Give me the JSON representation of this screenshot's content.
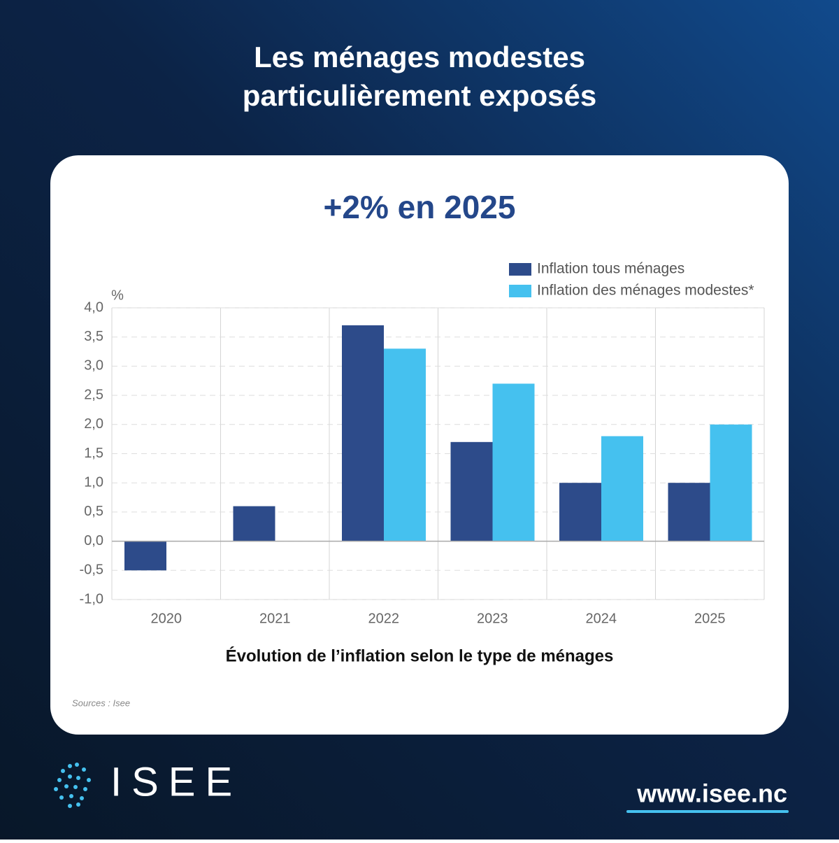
{
  "header": {
    "title_lines": [
      "Les ménages modestes",
      "particulièrement exposés"
    ]
  },
  "chart_data": {
    "type": "bar",
    "title": "+2% en 2025",
    "y_label": "%",
    "categories": [
      "2020",
      "2021",
      "2022",
      "2023",
      "2024",
      "2025"
    ],
    "series": [
      {
        "name": "Inflation tous ménages",
        "color": "#2d4b8a",
        "values": [
          -0.5,
          0.6,
          3.7,
          1.7,
          1.0,
          1.0
        ]
      },
      {
        "name": "Inflation des ménages modestes*",
        "color": "#45c1ef",
        "values": [
          null,
          null,
          3.3,
          2.7,
          1.8,
          2.0
        ]
      }
    ],
    "ylim": [
      -1,
      4
    ],
    "yticks": [
      {
        "value": -1,
        "label": "-1,0"
      },
      {
        "value": -0.5,
        "label": "-0,5"
      },
      {
        "value": 0,
        "label": "0,0"
      },
      {
        "value": 0.5,
        "label": "0,5"
      },
      {
        "value": 1,
        "label": "1,0"
      },
      {
        "value": 1.5,
        "label": "1,5"
      },
      {
        "value": 2,
        "label": "2,0"
      },
      {
        "value": 2.5,
        "label": "2,5"
      },
      {
        "value": 3,
        "label": "3,0"
      },
      {
        "value": 3.5,
        "label": "3,5"
      },
      {
        "value": 4,
        "label": "4,0"
      }
    ],
    "grid": true,
    "legend": "top-right",
    "caption": "Évolution de l’inflation selon le type de ménages",
    "source": "Sources : Isee"
  },
  "footer": {
    "logo": "ISEE",
    "url": "www.isee.nc"
  }
}
